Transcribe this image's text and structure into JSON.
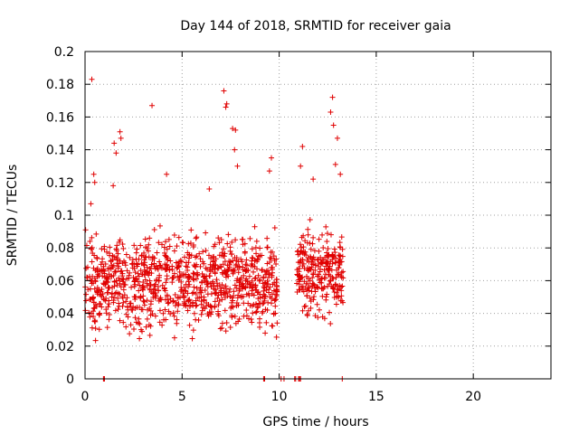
{
  "chart_data": {
    "type": "scatter",
    "title": "Day 144 of 2018, SRMTID for receiver gaia",
    "xlabel": "GPS time / hours",
    "ylabel": "SRMTID / TECUs",
    "xlim": [
      0,
      24
    ],
    "ylim": [
      0,
      0.2
    ],
    "x_ticks": [
      0,
      5,
      10,
      15,
      20
    ],
    "x_tick_labels": [
      "0",
      "5",
      "10",
      "15",
      "20"
    ],
    "y_ticks": [
      0,
      0.02,
      0.04,
      0.06,
      0.08,
      0.1,
      0.12,
      0.14,
      0.16,
      0.18,
      0.2
    ],
    "y_tick_labels": [
      "0",
      "0.02",
      "0.04",
      "0.06",
      "0.08",
      "0.1",
      "0.12",
      "0.14",
      "0.16",
      "0.18",
      "0.2"
    ],
    "grid": true,
    "marker": "+",
    "series": [
      {
        "name": "SRMTID",
        "color": "#e00000",
        "description": "Dense scatter of SRMTID values between 0 and 13.3 GPS hours, mostly 0.02-0.10 TECU with a gap near 10-11 h.",
        "clusters": [
          {
            "x_range": [
              0.0,
              9.9
            ],
            "y_range": [
              0.018,
              0.1
            ],
            "count": 1000
          },
          {
            "x_range": [
              10.9,
              13.3
            ],
            "y_range": [
              0.03,
              0.1
            ],
            "count": 260
          }
        ],
        "highlights": [
          {
            "x": 0.35,
            "y": 0.183
          },
          {
            "x": 3.45,
            "y": 0.167
          },
          {
            "x": 7.15,
            "y": 0.176
          },
          {
            "x": 7.25,
            "y": 0.166
          },
          {
            "x": 7.3,
            "y": 0.168
          },
          {
            "x": 7.6,
            "y": 0.153
          },
          {
            "x": 7.75,
            "y": 0.152
          },
          {
            "x": 7.7,
            "y": 0.14
          },
          {
            "x": 7.85,
            "y": 0.13
          },
          {
            "x": 12.75,
            "y": 0.172
          },
          {
            "x": 12.65,
            "y": 0.163
          },
          {
            "x": 12.8,
            "y": 0.155
          },
          {
            "x": 13.0,
            "y": 0.147
          },
          {
            "x": 11.2,
            "y": 0.142
          },
          {
            "x": 12.9,
            "y": 0.131
          },
          {
            "x": 13.15,
            "y": 0.125
          },
          {
            "x": 1.8,
            "y": 0.151
          },
          {
            "x": 1.85,
            "y": 0.147
          },
          {
            "x": 1.5,
            "y": 0.144
          },
          {
            "x": 1.6,
            "y": 0.138
          },
          {
            "x": 4.2,
            "y": 0.125
          },
          {
            "x": 9.6,
            "y": 0.135
          },
          {
            "x": 9.5,
            "y": 0.127
          },
          {
            "x": 6.4,
            "y": 0.116
          },
          {
            "x": 0.45,
            "y": 0.125
          },
          {
            "x": 0.5,
            "y": 0.12
          },
          {
            "x": 0.3,
            "y": 0.107
          },
          {
            "x": 1.45,
            "y": 0.118
          },
          {
            "x": 11.1,
            "y": 0.13
          },
          {
            "x": 11.75,
            "y": 0.122
          }
        ],
        "zero_markers": [
          0.95,
          0.98,
          1.0,
          9.2,
          9.25,
          10.1,
          10.25,
          10.8,
          10.85,
          11.0,
          11.05,
          11.1,
          13.25
        ]
      }
    ]
  }
}
